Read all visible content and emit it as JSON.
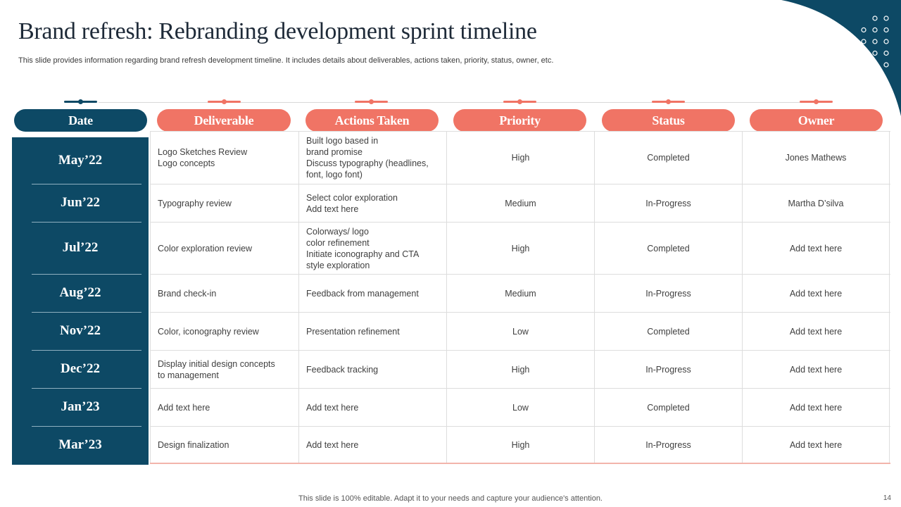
{
  "slide": {
    "title": "Brand refresh: Rebranding development sprint timeline",
    "subtitle": "This slide provides information regarding brand refresh development timeline. It includes details about deliverables, actions taken, priority, status, owner, etc.",
    "footer": "This slide is 100% editable. Adapt it to your needs and capture your audience's attention.",
    "page_number": "14"
  },
  "colors": {
    "navy": "#0d4965",
    "coral": "#f07465"
  },
  "headers": {
    "date": "Date",
    "deliverable": "Deliverable",
    "actions": "Actions Taken",
    "priority": "Priority",
    "status": "Status",
    "owner": "Owner"
  },
  "rows": [
    {
      "date": "May’22",
      "deliverable": [
        "Logo Sketches Review",
        "Logo concepts"
      ],
      "actions": [
        "Built logo based in",
        "brand promise",
        "Discuss typography (headlines,",
        "font, logo font)"
      ],
      "priority": "High",
      "status": "Completed",
      "owner": "Jones Mathews"
    },
    {
      "date": "Jun’22",
      "deliverable": [
        "Typography  review"
      ],
      "actions": [
        "Select color exploration",
        "Add text here"
      ],
      "priority": "Medium",
      "status": "In-Progress",
      "owner": "Martha D’silva"
    },
    {
      "date": "Jul’22",
      "deliverable": [
        "Color exploration review"
      ],
      "actions": [
        "Colorways/ logo",
        "color refinement",
        "Initiate iconography and CTA",
        "style exploration"
      ],
      "priority": "High",
      "status": "Completed",
      "owner": "Add text here"
    },
    {
      "date": "Aug’22",
      "deliverable": [
        "Brand check-in"
      ],
      "actions": [
        "Feedback from management"
      ],
      "priority": "Medium",
      "status": "In-Progress",
      "owner": "Add text here"
    },
    {
      "date": "Nov’22",
      "deliverable": [
        "Color, iconography review"
      ],
      "actions": [
        "Presentation refinement"
      ],
      "priority": "Low",
      "status": "Completed",
      "owner": "Add text here"
    },
    {
      "date": "Dec’22",
      "deliverable": [
        "Display initial design concepts",
        "to management"
      ],
      "actions": [
        "Feedback tracking"
      ],
      "priority": "High",
      "status": "In-Progress",
      "owner": "Add text here"
    },
    {
      "date": "Jan’23",
      "deliverable": [
        "Add text here"
      ],
      "actions": [
        "Add text here"
      ],
      "priority": "Low",
      "status": "Completed",
      "owner": "Add text here"
    },
    {
      "date": "Mar’23",
      "deliverable": [
        "Design finalization"
      ],
      "actions": [
        "Add text here"
      ],
      "priority": "High",
      "status": "In-Progress",
      "owner": "Add text here"
    }
  ]
}
